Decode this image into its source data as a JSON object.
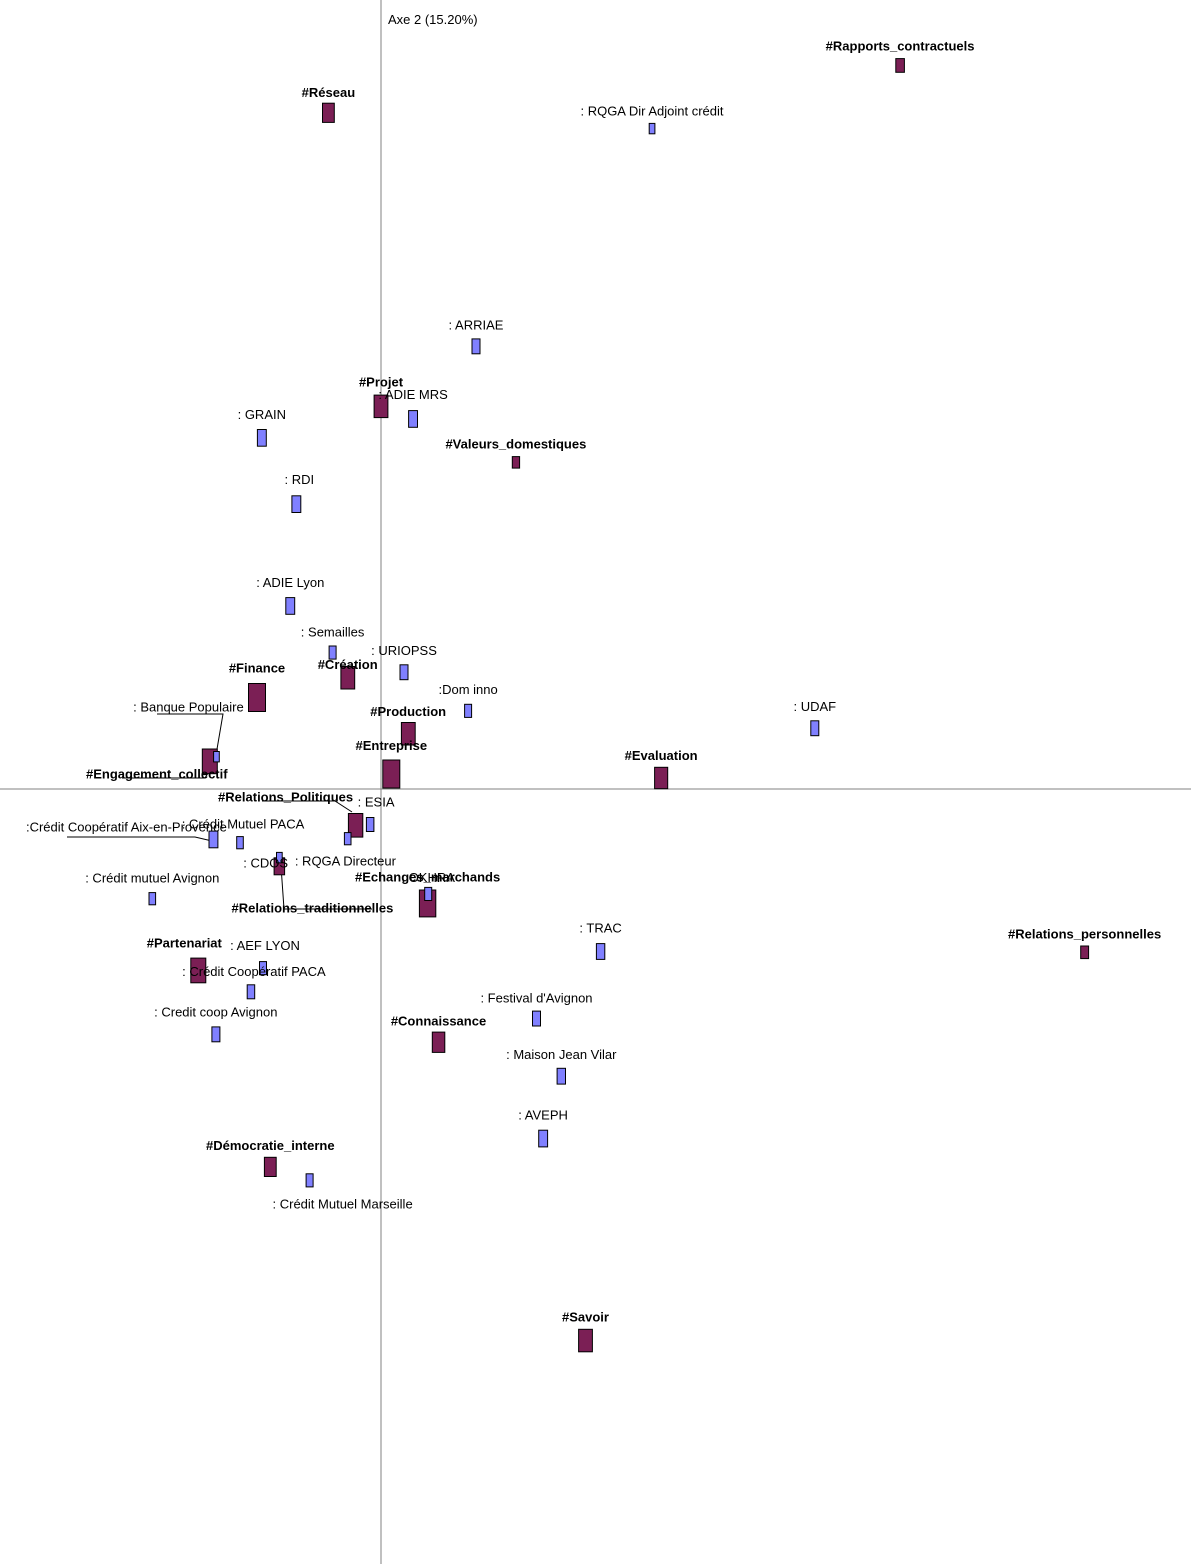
{
  "chart_data": {
    "type": "scatter",
    "title": "",
    "xlabel": "",
    "ylabel": "Axe 2 (15.20%)",
    "grid": false,
    "legend": "none",
    "colors": {
      "variable": "#7b1f55",
      "observation": "#8080ff",
      "axis": "#808080",
      "leader": "#000000"
    },
    "series": [
      {
        "key": "variables",
        "points": [
          {
            "label": "#Rapports_contractuels",
            "x": 0.858,
            "y": 0.917,
            "size": 0.35
          },
          {
            "label": "#Réseau",
            "x": -0.087,
            "y": 0.857,
            "size": 0.6
          },
          {
            "label": "#Projet",
            "x": 0.0,
            "y": 0.485,
            "size": 0.75
          },
          {
            "label": "#Valeurs_domestiques",
            "x": 0.223,
            "y": 0.414,
            "size": 0.25
          },
          {
            "label": "#Finance",
            "x": -0.205,
            "y": 0.116,
            "size": 1.0
          },
          {
            "label": "#Création",
            "x": -0.055,
            "y": 0.141,
            "size": 0.75
          },
          {
            "label": "#Production",
            "x": 0.045,
            "y": 0.07,
            "size": 0.75
          },
          {
            "label": "#Entreprise",
            "x": 0.017,
            "y": 0.019,
            "size": 1.0
          },
          {
            "label": "#Engagement_collectif",
            "x": -0.283,
            "y": 0.035,
            "size": 0.85
          },
          {
            "label": "#Evaluation",
            "x": 0.463,
            "y": 0.014,
            "size": 0.7
          },
          {
            "label": "#Relations_Politiques",
            "x": -0.042,
            "y": -0.046,
            "size": 0.8
          },
          {
            "label": "#Relations_traditionnelles",
            "x": -0.168,
            "y": -0.098,
            "size": 0.5
          },
          {
            "label": "#Echanges_marchands",
            "x": 0.077,
            "y": -0.145,
            "size": 0.95
          },
          {
            "label": "#Relations_personnelles",
            "x": 1.163,
            "y": -0.207,
            "size": 0.3
          },
          {
            "label": "#Partenariat",
            "x": -0.302,
            "y": -0.23,
            "size": 0.85
          },
          {
            "label": "#Connaissance",
            "x": 0.095,
            "y": -0.321,
            "size": 0.65
          },
          {
            "label": "#Démocratie_interne",
            "x": -0.183,
            "y": -0.479,
            "size": 0.6
          },
          {
            "label": "#Savoir",
            "x": 0.338,
            "y": -0.699,
            "size": 0.75
          }
        ]
      },
      {
        "key": "observations",
        "points": [
          {
            "label": ": RQGA Dir Adjoint crédit",
            "x": 0.448,
            "y": 0.837,
            "size": 0.3
          },
          {
            "label": ": ARRIAE",
            "x": 0.157,
            "y": 0.561,
            "size": 0.55
          },
          {
            "label": ": ADIE MRS",
            "x": 0.053,
            "y": 0.469,
            "size": 0.65
          },
          {
            "label": ": GRAIN",
            "x": -0.197,
            "y": 0.445,
            "size": 0.65
          },
          {
            "label": ": RDI",
            "x": -0.14,
            "y": 0.361,
            "size": 0.65
          },
          {
            "label": ": ADIE Lyon",
            "x": -0.15,
            "y": 0.232,
            "size": 0.65
          },
          {
            "label": ": Semailles",
            "x": -0.08,
            "y": 0.173,
            "size": 0.45
          },
          {
            "label": ": URIOPSS",
            "x": 0.038,
            "y": 0.148,
            "size": 0.55
          },
          {
            "label": ":Dom inno",
            "x": 0.144,
            "y": 0.099,
            "size": 0.45
          },
          {
            "label": ": UDAF",
            "x": 0.717,
            "y": 0.077,
            "size": 0.55
          },
          {
            "label": ": Banque Populaire",
            "x": -0.272,
            "y": 0.041,
            "size": 0.3
          },
          {
            "label": ": ESIA",
            "x": -0.018,
            "y": -0.045,
            "size": 0.5
          },
          {
            "label": ":Crédit Coopératif Aix-en-Provence",
            "x": -0.277,
            "y": -0.064,
            "size": 0.65
          },
          {
            "label": ": Crédit Mutuel PACA",
            "x": -0.233,
            "y": -0.068,
            "size": 0.4
          },
          {
            "label": ": CDOS",
            "x": -0.055,
            "y": -0.063,
            "size": 0.4
          },
          {
            "label": ": RQGA Directeur",
            "x": -0.168,
            "y": -0.087,
            "size": 0.3
          },
          {
            "label": ": Crédit mutuel Avignon",
            "x": -0.378,
            "y": -0.139,
            "size": 0.4
          },
          {
            "label": ": OKHRA",
            "x": 0.078,
            "y": -0.133,
            "size": 0.45
          },
          {
            "label": ": AEF LYON",
            "x": -0.195,
            "y": -0.227,
            "size": 0.45
          },
          {
            "label": ": Crédit Coopératif PACA",
            "x": -0.215,
            "y": -0.257,
            "size": 0.5
          },
          {
            "label": ": TRAC",
            "x": 0.363,
            "y": -0.206,
            "size": 0.6
          },
          {
            "label": ": Credit coop Avignon",
            "x": -0.273,
            "y": -0.311,
            "size": 0.55
          },
          {
            "label": ": Festival d'Avignon",
            "x": 0.257,
            "y": -0.291,
            "size": 0.55
          },
          {
            "label": ": Maison Jean Vilar",
            "x": 0.298,
            "y": -0.364,
            "size": 0.6
          },
          {
            "label": ": AVEPH",
            "x": 0.268,
            "y": -0.443,
            "size": 0.65
          },
          {
            "label": ": Crédit Mutuel Marseille",
            "x": -0.118,
            "y": -0.496,
            "size": 0.45
          }
        ]
      }
    ]
  }
}
